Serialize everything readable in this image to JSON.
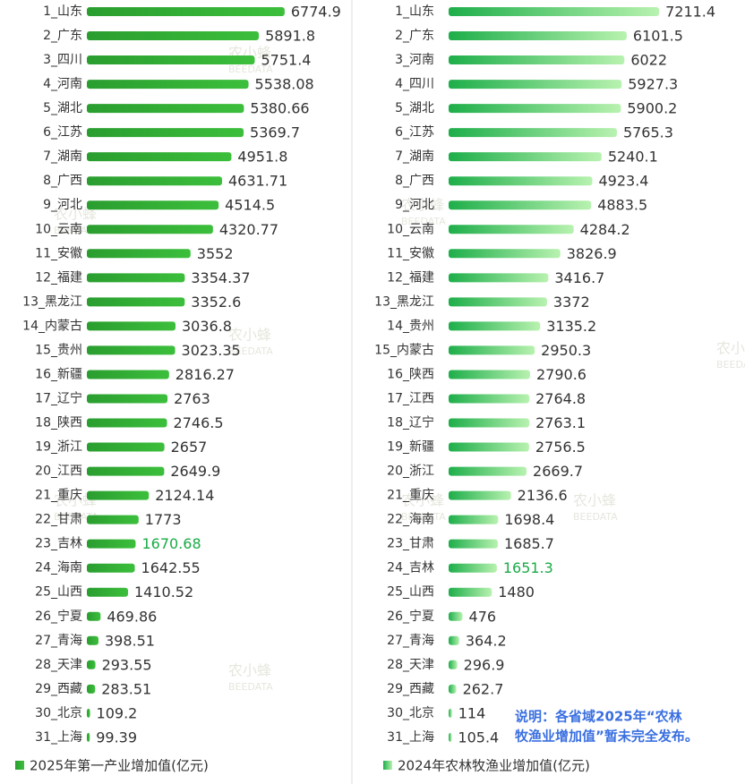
{
  "chart_data": [
    {
      "type": "bar",
      "orientation": "horizontal",
      "categories": [
        "1_山东",
        "2_广东",
        "3_四川",
        "4_河南",
        "5_湖北",
        "6_江苏",
        "7_湖南",
        "8_广西",
        "9_河北",
        "10_云南",
        "11_安徽",
        "12_福建",
        "13_黑龙江",
        "14_内蒙古",
        "15_贵州",
        "16_新疆",
        "17_辽宁",
        "18_陕西",
        "19_浙江",
        "20_江西",
        "21_重庆",
        "22_甘肃",
        "23_吉林",
        "24_海南",
        "25_山西",
        "26_宁夏",
        "27_青海",
        "28_天津",
        "29_西藏",
        "30_北京",
        "31_上海"
      ],
      "series": [
        {
          "name": "2025年第一产业增加值(亿元)",
          "color": "#2a9d2f",
          "color_end": "#3cbf3c",
          "values": [
            6774.9,
            5891.8,
            5751.4,
            5538.08,
            5380.66,
            5369.7,
            4951.8,
            4631.71,
            4514.5,
            4320.77,
            3552,
            3354.37,
            3352.6,
            3036.8,
            3023.35,
            2816.27,
            2763,
            2746.5,
            2657,
            2649.9,
            2124.14,
            1773,
            1670.68,
            1642.55,
            1410.52,
            469.86,
            398.51,
            293.55,
            283.51,
            109.2,
            99.39
          ]
        }
      ],
      "highlight": {
        "index": 22,
        "color": "#1aab46"
      },
      "legend": "bottom-left"
    },
    {
      "type": "bar",
      "orientation": "horizontal",
      "categories": [
        "1_山东",
        "2_广东",
        "3_河南",
        "4_四川",
        "5_湖北",
        "6_江苏",
        "7_湖南",
        "8_广西",
        "9_河北",
        "10_云南",
        "11_安徽",
        "12_福建",
        "13_黑龙江",
        "14_贵州",
        "15_内蒙古",
        "16_陕西",
        "17_江西",
        "18_辽宁",
        "19_新疆",
        "20_浙江",
        "21_重庆",
        "22_海南",
        "23_甘肃",
        "24_吉林",
        "25_山西",
        "26_宁夏",
        "27_青海",
        "28_天津",
        "29_西藏",
        "30_北京",
        "31_上海"
      ],
      "series": [
        {
          "name": "2024年农林牧渔业增加值(亿元)",
          "color": "#1eae4a",
          "color_end": "#b8f2b0",
          "values": [
            7211.4,
            6101.5,
            6022,
            5927.3,
            5900.2,
            5765.3,
            5240.1,
            4923.4,
            4883.5,
            4284.2,
            3826.9,
            3416.7,
            3372,
            3135.2,
            2950.3,
            2790.6,
            2764.8,
            2763.1,
            2756.5,
            2669.7,
            2136.6,
            1698.4,
            1685.7,
            1651.3,
            1480,
            476,
            364.2,
            296.9,
            262.7,
            114,
            105.4
          ]
        }
      ],
      "highlight": {
        "index": 23,
        "color": "#1aab46"
      },
      "legend": "bottom-left",
      "annotation": [
        "说明：各省域2025年“农林",
        "牧渔业增加值”暂未完全发布。"
      ]
    }
  ],
  "watermark": [
    "农小蜂",
    "BEEDATA"
  ]
}
